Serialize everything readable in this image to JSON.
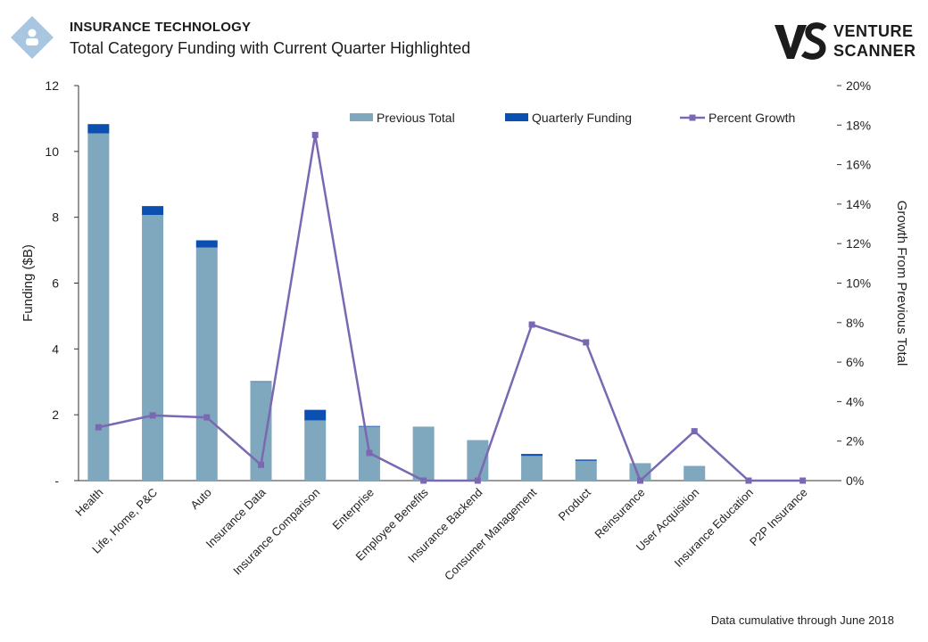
{
  "header": {
    "category": "INSURANCE TECHNOLOGY",
    "subtitle": "Total Category Funding with Current Quarter Highlighted"
  },
  "brand": {
    "line1": "VENTURE",
    "line2": "SCANNER"
  },
  "footnote": "Data cumulative through June 2018",
  "colors": {
    "previous": "#7fa7bd",
    "quarterly": "#0b4fb0",
    "growth": "#7b68b3",
    "axis": "#333333",
    "logo": "#a9c6e0"
  },
  "chart_data": {
    "type": "bar",
    "stacked": true,
    "categories": [
      "Health",
      "Life, Home, P&C",
      "Auto",
      "Insurance Data",
      "Insurance Comparison",
      "Enterprise",
      "Employee Benefits",
      "Insurance Backend",
      "Consumer Management",
      "Product",
      "Reinsurance",
      "User Acquisition",
      "Insurance Education",
      "P2P Insurance"
    ],
    "series": [
      {
        "name": "Previous Total",
        "values": [
          10.55,
          8.07,
          7.08,
          3.0,
          1.83,
          1.64,
          1.64,
          1.23,
          0.75,
          0.6,
          0.53,
          0.43,
          0.0,
          0.0
        ]
      },
      {
        "name": "Quarterly Funding",
        "values": [
          0.28,
          0.27,
          0.22,
          0.02,
          0.32,
          0.02,
          0.0,
          0.0,
          0.06,
          0.04,
          0.0,
          0.01,
          0.0,
          0.0
        ]
      }
    ],
    "line_series": {
      "name": "Percent Growth",
      "axis": "right",
      "values": [
        2.7,
        3.3,
        3.2,
        0.8,
        17.5,
        1.4,
        0.0,
        0.0,
        7.9,
        7.0,
        0.0,
        2.5,
        0.0,
        0.0
      ]
    },
    "ylabel": "Funding ($B)",
    "y2label": "Growth From Previous Total",
    "ylim": [
      0,
      12
    ],
    "y2lim": [
      0,
      20
    ],
    "yticks": [
      "-",
      "2",
      "4",
      "6",
      "8",
      "10",
      "12"
    ],
    "y2ticks": [
      "0%",
      "2%",
      "4%",
      "6%",
      "8%",
      "10%",
      "12%",
      "14%",
      "16%",
      "18%",
      "20%"
    ],
    "legend": [
      "Previous Total",
      "Quarterly Funding",
      "Percent Growth"
    ],
    "legend_position": "top"
  }
}
